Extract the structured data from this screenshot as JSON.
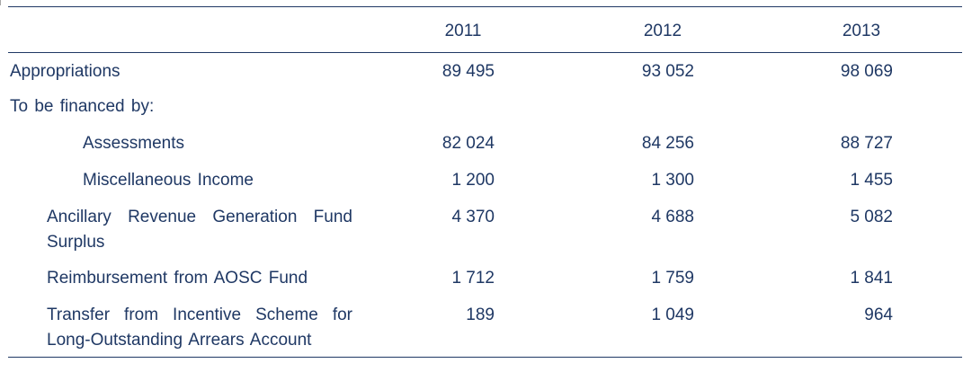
{
  "table": {
    "years": [
      "2011",
      "2012",
      "2013"
    ],
    "rows": [
      {
        "label": "Appropriations",
        "values": [
          "89 495",
          "93 052",
          "98 069"
        ]
      },
      {
        "label": "To be financed by:",
        "values": [
          "",
          "",
          ""
        ]
      },
      {
        "label": "Assessments",
        "values": [
          "82 024",
          "84 256",
          "88 727"
        ]
      },
      {
        "label": "Miscellaneous  Income",
        "values": [
          "1 200",
          "1 300",
          "1 455"
        ]
      },
      {
        "label": "Ancillary  Revenue  Generation  Fund Surplus",
        "values": [
          "4 370",
          "4 688",
          "5 082"
        ]
      },
      {
        "label": "Reimbursement  from  AOSC  Fund",
        "values": [
          "1 712",
          "1 759",
          "1 841"
        ]
      },
      {
        "label": "Transfer  from  Incentive  Scheme  for Long-Outstanding  Arrears  Account",
        "values": [
          "189",
          "1 049",
          "964"
        ]
      }
    ]
  }
}
